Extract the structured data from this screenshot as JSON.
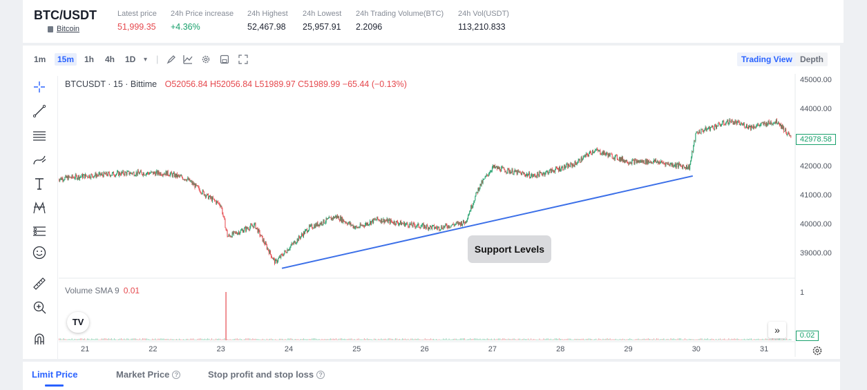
{
  "ticker": {
    "pair": "BTC/USDT",
    "coin": "Bitcoin",
    "stats": [
      {
        "label": "Latest price",
        "value": "51,999.35",
        "color": "red"
      },
      {
        "label": "24h Price increase",
        "value": "+4.36%",
        "color": "green"
      },
      {
        "label": "24h Highest",
        "value": "52,467.98",
        "color": "dark"
      },
      {
        "label": "24h Lowest",
        "value": "25,957.91",
        "color": "dark"
      },
      {
        "label": "24h Trading Volume(BTC)",
        "value": "2.2096",
        "color": "dark"
      },
      {
        "label": "24h Vol(USDT)",
        "value": "113,210.833",
        "color": "dark"
      }
    ]
  },
  "toolbar": {
    "timeframes": [
      "1m",
      "15m",
      "1h",
      "4h",
      "1D"
    ],
    "active_timeframe": "15m",
    "dropdown_glyph": "▾",
    "views": [
      "Trading View",
      "Depth"
    ],
    "active_view": "Trading View"
  },
  "chart": {
    "symbol_line": "BTCUSDT · 15 · Bittime",
    "ohlc": "O52056.84 H52056.84 L51989.97 C51989.99 −65.44 (−0.13%)",
    "volume_title": "Volume SMA 9",
    "volume_value": "0.01",
    "current_price_tag": "42978.58",
    "volume_tag": "0.02",
    "volume_axis_label": "1",
    "annotation": "Support Levels",
    "tv_logo": "TV",
    "scroll_glyph": "»"
  },
  "chart_data": {
    "type": "candlestick",
    "price_axis": [
      "45000.00",
      "44000.00",
      "43000.00",
      "42000.00",
      "41000.00",
      "40000.00",
      "39000.00"
    ],
    "x_ticks": [
      "21",
      "22",
      "23",
      "24",
      "25",
      "26",
      "27",
      "28",
      "29",
      "30",
      "31"
    ],
    "approx_close_path": [
      {
        "day": 20.6,
        "price": 41600
      },
      {
        "day": 21.0,
        "price": 41700
      },
      {
        "day": 21.6,
        "price": 41800
      },
      {
        "day": 22.2,
        "price": 41800
      },
      {
        "day": 22.5,
        "price": 41600
      },
      {
        "day": 22.8,
        "price": 41000
      },
      {
        "day": 23.0,
        "price": 40700
      },
      {
        "day": 23.1,
        "price": 39600
      },
      {
        "day": 23.5,
        "price": 40000
      },
      {
        "day": 23.8,
        "price": 38700
      },
      {
        "day": 24.0,
        "price": 39200
      },
      {
        "day": 24.3,
        "price": 39900
      },
      {
        "day": 24.7,
        "price": 40300
      },
      {
        "day": 25.0,
        "price": 39900
      },
      {
        "day": 25.3,
        "price": 40200
      },
      {
        "day": 25.8,
        "price": 40000
      },
      {
        "day": 26.2,
        "price": 39900
      },
      {
        "day": 26.6,
        "price": 40100
      },
      {
        "day": 26.8,
        "price": 41300
      },
      {
        "day": 27.0,
        "price": 42000
      },
      {
        "day": 27.6,
        "price": 41700
      },
      {
        "day": 28.2,
        "price": 42100
      },
      {
        "day": 28.5,
        "price": 42600
      },
      {
        "day": 29.0,
        "price": 42200
      },
      {
        "day": 29.4,
        "price": 42200
      },
      {
        "day": 29.9,
        "price": 42000
      },
      {
        "day": 30.0,
        "price": 43200
      },
      {
        "day": 30.5,
        "price": 43600
      },
      {
        "day": 30.8,
        "price": 43400
      },
      {
        "day": 31.2,
        "price": 43600
      },
      {
        "day": 31.4,
        "price": 43000
      }
    ],
    "support_line": [
      {
        "day": 23.9,
        "price": 38500
      },
      {
        "day": 29.95,
        "price": 41700
      }
    ],
    "volume_spike_day": 23.07
  },
  "bottom_tabs": [
    {
      "label": "Limit Price",
      "active": true,
      "help": false
    },
    {
      "label": "Market Price",
      "active": false,
      "help": true
    },
    {
      "label": "Stop profit and stop loss",
      "active": false,
      "help": true
    }
  ],
  "icons": [
    "crosshair-icon",
    "trendline-icon",
    "fib-icon",
    "brush-icon",
    "text-icon",
    "pattern-icon",
    "prediction-icon",
    "emoji-icon",
    "ruler-icon",
    "zoom-icon",
    "magnet-icon",
    "settings-icon",
    "fullscreen-icon",
    "save-icon",
    "indicator-icon",
    "draw-icon"
  ]
}
